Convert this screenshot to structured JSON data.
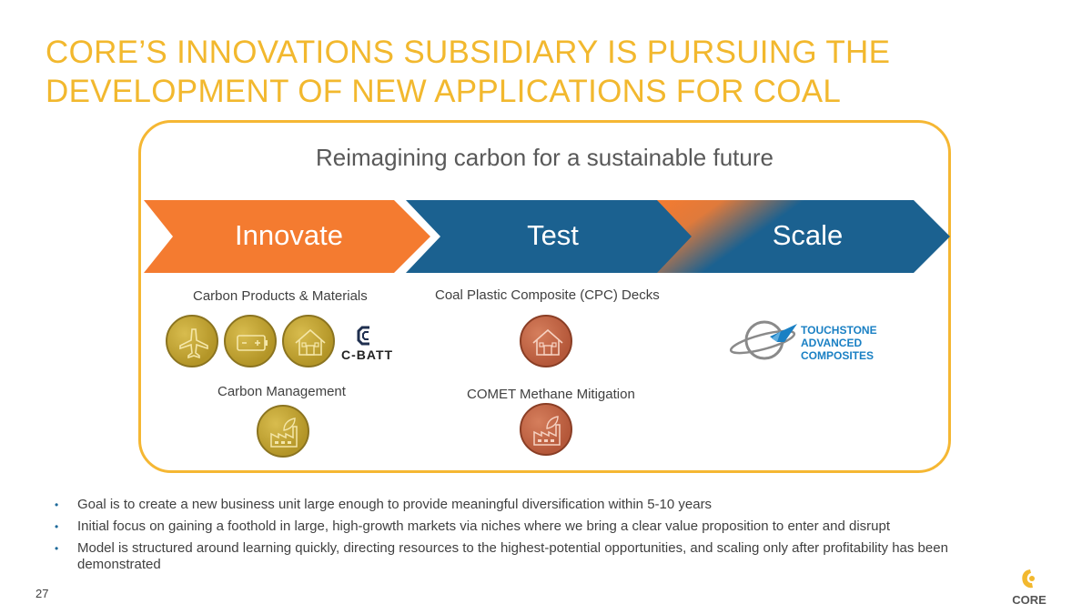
{
  "slide": {
    "title_line1": "CORE’S INNOVATIONS SUBSIDIARY IS PURSUING THE",
    "title_line2": "DEVELOPMENT OF NEW APPLICATIONS FOR COAL",
    "subtitle": "Reimagining carbon for a sustainable future",
    "page_number": "27"
  },
  "stages": [
    {
      "label": "Innovate",
      "color": "#F47B30"
    },
    {
      "label": "Test",
      "color": "#1B6190"
    },
    {
      "label": "Scale",
      "color": "#1B6190"
    }
  ],
  "captions": {
    "carbon_products": "Carbon Products & Materials",
    "cpc_decks": "Coal Plastic Composite (CPC) Decks",
    "carbon_management": "Carbon Management",
    "comet": "COMET Methane Mitigation"
  },
  "logos": {
    "cbatt": "C-BATT",
    "touchstone": [
      "TOUCHSTONE",
      "ADVANCED",
      "COMPOSITES"
    ],
    "core": "CORE"
  },
  "icons": {
    "medals": [
      "airplane-icon",
      "battery-icon",
      "house-icon",
      "house-icon",
      "factory-leaf-icon",
      "factory-leaf-icon"
    ]
  },
  "bullets": [
    "Goal is to create a new business unit large enough to provide meaningful diversification within 5-10 years",
    "Initial focus on gaining a foothold in large, high-growth markets via niches where we bring a clear value proposition to enter and disrupt",
    "Model is structured around learning quickly, directing resources to the highest-potential opportunities, and scaling only after profitability has been demonstrated"
  ],
  "colors": {
    "title": "#F2B82E",
    "frame": "#F5B733",
    "orange": "#F47B30",
    "blue": "#1B6190",
    "gold_medal": "#C4A53A",
    "copper_medal": "#C56846"
  }
}
